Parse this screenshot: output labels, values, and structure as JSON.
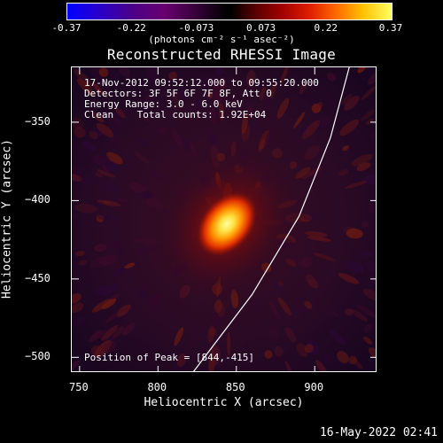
{
  "colorbar": {
    "tick_labels": [
      "-0.37",
      "-0.22",
      "-0.073",
      "0.073",
      "0.22",
      "0.37"
    ],
    "units_label": "(photons cm⁻² s⁻¹ asec⁻²)"
  },
  "title": "Reconstructed RHESSI Image",
  "info": {
    "time_range": "17-Nov-2012 09:52:12.000 to 09:55:20.000",
    "detectors": "Detectors: 3F 5F 6F 7F 8F, Att 0",
    "energy_range": "Energy Range: 3.0 - 6.0 keV",
    "algorithm_counts": "Clean    Total counts: 1.92E+04"
  },
  "peak_label": "Position of Peak = [844,-415]",
  "chart_data": {
    "type": "heatmap",
    "title": "Reconstructed RHESSI Image",
    "xlabel": "Heliocentric X (arcsec)",
    "ylabel": "Heliocentric Y (arcsec)",
    "xlim": [
      745,
      940
    ],
    "ylim": [
      -510,
      -315
    ],
    "x_ticks": [
      750,
      800,
      850,
      900
    ],
    "y_ticks": [
      -350,
      -400,
      -450,
      -500
    ],
    "colorbar_range": [
      -0.37,
      0.37
    ],
    "peak": {
      "x": 844,
      "y": -415
    },
    "limb_curve": [
      [
        822,
        -510
      ],
      [
        860,
        -460
      ],
      [
        890,
        -410
      ],
      [
        910,
        -360
      ],
      [
        922,
        -315
      ]
    ]
  },
  "timestamp": "16-May-2022 02:41"
}
